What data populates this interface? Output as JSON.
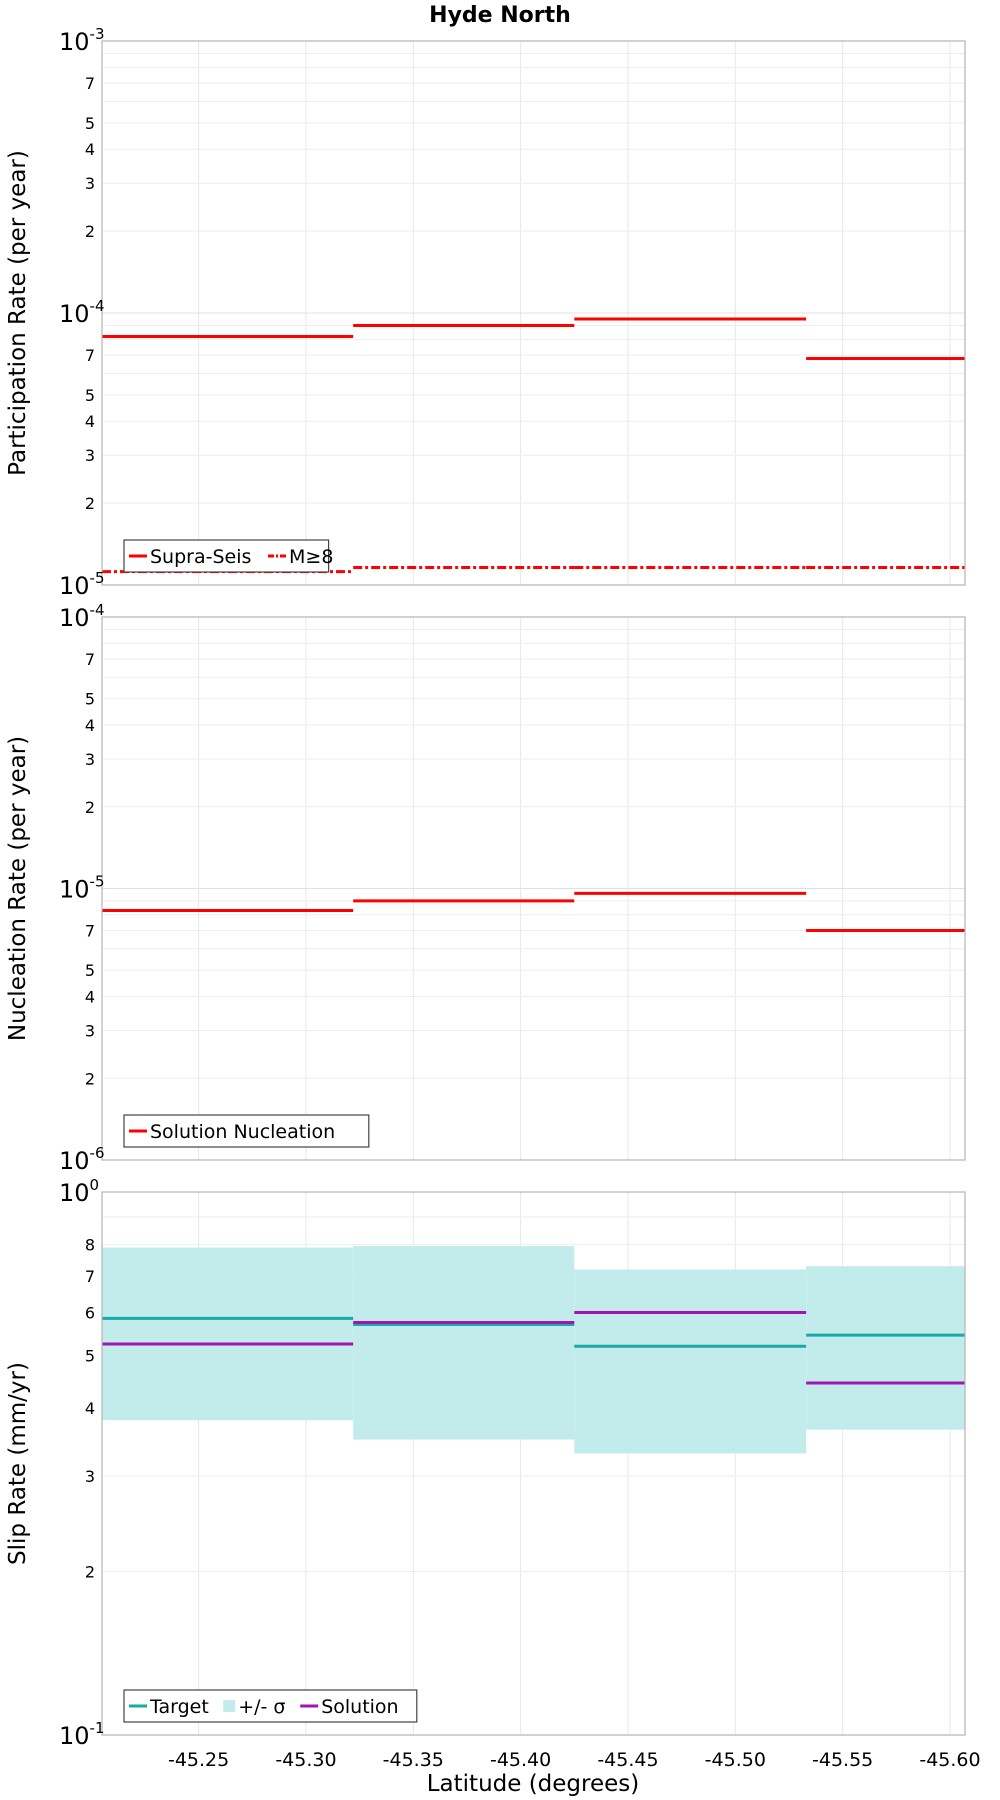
{
  "chart_data": {
    "title": "Hyde North",
    "type": "step-line",
    "x": {
      "label": "Latitude (degrees)",
      "range": [
        -45.205,
        -45.607
      ],
      "ticks": [
        -45.25,
        -45.3,
        -45.35,
        -45.4,
        -45.45,
        -45.5,
        -45.55,
        -45.6
      ],
      "tick_labels": [
        "-45.25",
        "-45.30",
        "-45.35",
        "-45.40",
        "-45.45",
        "-45.50",
        "-45.55",
        "-45.60"
      ]
    },
    "panels": [
      {
        "id": "participation",
        "ylabel": "Participation Rate (per year)",
        "yscale": "log",
        "ylim": [
          1e-05,
          0.001
        ],
        "decade_labels": [
          {
            "value": 1e-05,
            "base": "10",
            "exp": "-5"
          },
          {
            "value": 0.0001,
            "base": "10",
            "exp": "-4"
          },
          {
            "value": 0.001,
            "base": "10",
            "exp": "-3"
          }
        ],
        "minor_labels": [
          2,
          3,
          4,
          5,
          7
        ],
        "legend": [
          {
            "name": "Supra-Seis",
            "style": "solid",
            "color": "#ff0000"
          },
          {
            "name": "M≥8",
            "style": "dashdot",
            "color": "#ff0000"
          }
        ],
        "series": [
          {
            "name": "Supra-Seis",
            "color": "#ff0000",
            "style": "solid",
            "segments": [
              {
                "x0": -45.205,
                "x1": -45.322,
                "y": 8.2e-05
              },
              {
                "x0": -45.322,
                "x1": -45.425,
                "y": 9e-05
              },
              {
                "x0": -45.425,
                "x1": -45.533,
                "y": 9.5e-05
              },
              {
                "x0": -45.533,
                "x1": -45.607,
                "y": 6.8e-05
              }
            ]
          },
          {
            "name": "M≥8",
            "color": "#ff0000",
            "style": "dashdot",
            "segments": [
              {
                "x0": -45.205,
                "x1": -45.322,
                "y": 1.12e-05
              },
              {
                "x0": -45.322,
                "x1": -45.425,
                "y": 1.16e-05
              },
              {
                "x0": -45.425,
                "x1": -45.533,
                "y": 1.16e-05
              },
              {
                "x0": -45.533,
                "x1": -45.607,
                "y": 1.16e-05
              }
            ]
          }
        ]
      },
      {
        "id": "nucleation",
        "ylabel": "Nucleation Rate (per year)",
        "yscale": "log",
        "ylim": [
          1e-06,
          0.0001
        ],
        "decade_labels": [
          {
            "value": 1e-06,
            "base": "10",
            "exp": "-6"
          },
          {
            "value": 1e-05,
            "base": "10",
            "exp": "-5"
          },
          {
            "value": 0.0001,
            "base": "10",
            "exp": "-4"
          }
        ],
        "minor_labels": [
          2,
          3,
          4,
          5,
          7
        ],
        "legend": [
          {
            "name": "Solution Nucleation",
            "style": "solid",
            "color": "#ff0000"
          }
        ],
        "series": [
          {
            "name": "Solution Nucleation",
            "color": "#ff0000",
            "style": "solid",
            "segments": [
              {
                "x0": -45.205,
                "x1": -45.322,
                "y": 8.3e-06
              },
              {
                "x0": -45.322,
                "x1": -45.425,
                "y": 9e-06
              },
              {
                "x0": -45.425,
                "x1": -45.533,
                "y": 9.6e-06
              },
              {
                "x0": -45.533,
                "x1": -45.607,
                "y": 7e-06
              }
            ]
          }
        ]
      },
      {
        "id": "slip",
        "ylabel": "Slip Rate (mm/yr)",
        "yscale": "log",
        "ylim": [
          0.1,
          1.0
        ],
        "decade_labels": [
          {
            "value": 0.1,
            "base": "10",
            "exp": "-1"
          },
          {
            "value": 1.0,
            "base": "10",
            "exp": "0"
          }
        ],
        "minor_labels": [
          2,
          3,
          4,
          5,
          6,
          7,
          8
        ],
        "legend": [
          {
            "name": "Target",
            "style": "solid",
            "color": "#1aa8a8"
          },
          {
            "name": "+/- σ",
            "style": "fill",
            "color": "#c2ecec"
          },
          {
            "name": "Solution",
            "style": "solid",
            "color": "#a313b8"
          }
        ],
        "bands": [
          {
            "name": "+/- σ",
            "color": "#c2ecec",
            "segments": [
              {
                "x0": -45.205,
                "x1": -45.322,
                "low": 0.38,
                "high": 0.79
              },
              {
                "x0": -45.322,
                "x1": -45.425,
                "low": 0.35,
                "high": 0.795
              },
              {
                "x0": -45.425,
                "x1": -45.533,
                "low": 0.33,
                "high": 0.72
              },
              {
                "x0": -45.533,
                "x1": -45.607,
                "low": 0.365,
                "high": 0.73
              }
            ]
          }
        ],
        "series": [
          {
            "name": "Target",
            "color": "#1aa8a8",
            "style": "solid",
            "segments": [
              {
                "x0": -45.205,
                "x1": -45.322,
                "y": 0.585
              },
              {
                "x0": -45.322,
                "x1": -45.425,
                "y": 0.57
              },
              {
                "x0": -45.425,
                "x1": -45.533,
                "y": 0.52
              },
              {
                "x0": -45.533,
                "x1": -45.607,
                "y": 0.545
              }
            ]
          },
          {
            "name": "Solution",
            "color": "#a313b8",
            "style": "solid",
            "segments": [
              {
                "x0": -45.205,
                "x1": -45.322,
                "y": 0.525
              },
              {
                "x0": -45.322,
                "x1": -45.425,
                "y": 0.575
              },
              {
                "x0": -45.425,
                "x1": -45.533,
                "y": 0.6
              },
              {
                "x0": -45.533,
                "x1": -45.607,
                "y": 0.445
              }
            ]
          }
        ]
      }
    ]
  }
}
